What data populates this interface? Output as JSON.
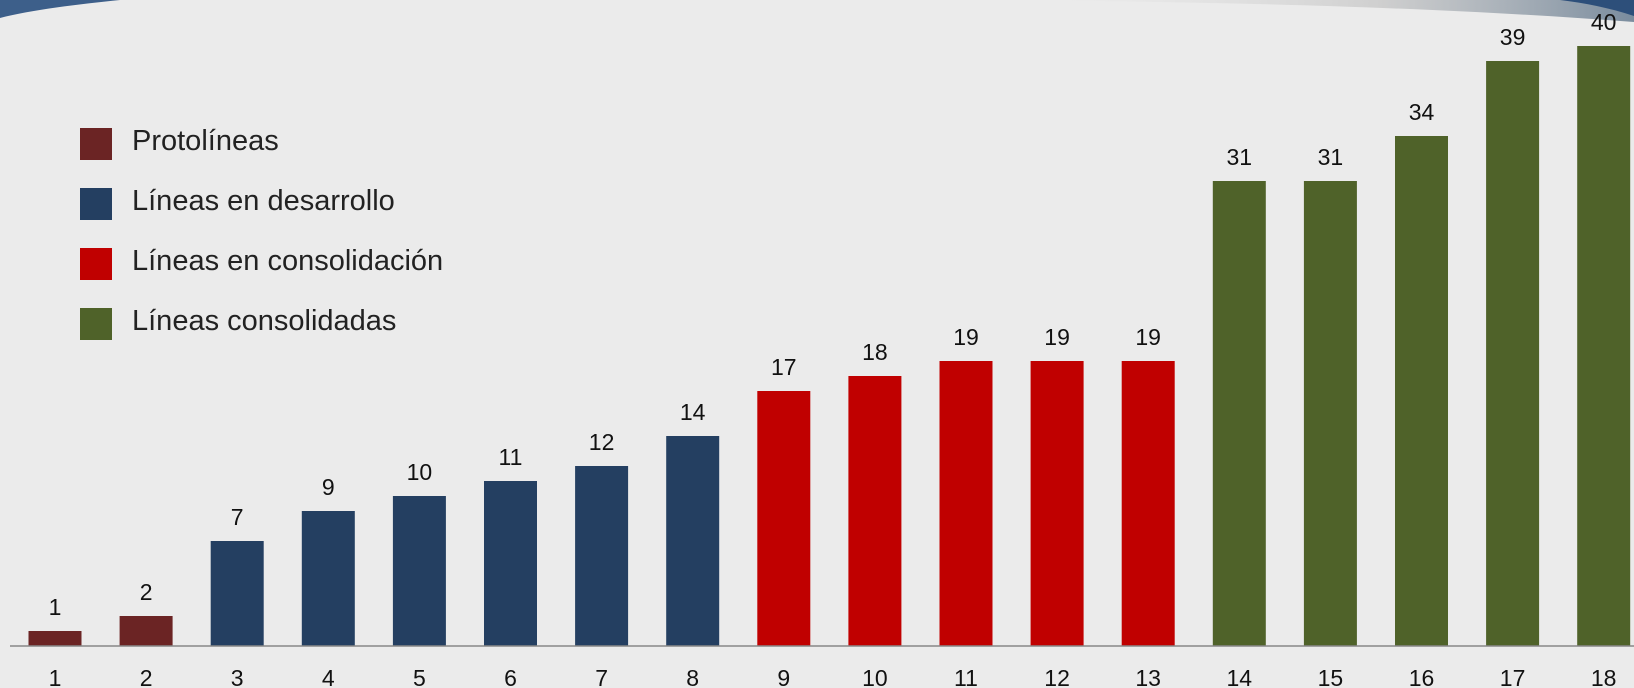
{
  "chart_data": {
    "type": "bar",
    "categories": [
      "1",
      "2",
      "3",
      "4",
      "5",
      "6",
      "7",
      "8",
      "9",
      "10",
      "11",
      "12",
      "13",
      "14",
      "15",
      "16",
      "17",
      "18"
    ],
    "values": [
      1,
      2,
      7,
      9,
      10,
      11,
      12,
      14,
      17,
      18,
      19,
      19,
      19,
      31,
      31,
      34,
      39,
      40
    ],
    "groups": [
      0,
      0,
      1,
      1,
      1,
      1,
      1,
      1,
      2,
      2,
      2,
      2,
      2,
      3,
      3,
      3,
      3,
      3
    ],
    "legend": [
      {
        "name": "Protolíneas",
        "color": "#6b2424"
      },
      {
        "name": "Líneas en desarrollo",
        "color": "#243f61"
      },
      {
        "name": "Líneas en consolidación",
        "color": "#c00000"
      },
      {
        "name": "Líneas consolidadas",
        "color": "#4f6229"
      }
    ],
    "legend_position": "upper-left",
    "grid": false,
    "ylim": [
      0,
      40
    ]
  }
}
